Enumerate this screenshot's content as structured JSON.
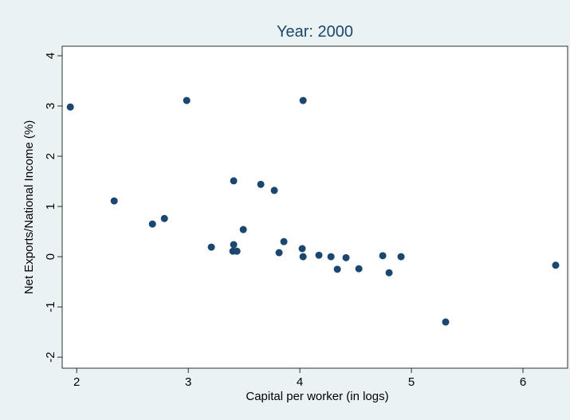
{
  "chart_data": {
    "type": "scatter",
    "title": "Year: 2000",
    "x_label": "Capital per worker (in logs)",
    "y_label": "Net Exports/National Income (%)",
    "color": "#1a476f",
    "x": [
      1.943,
      2.986,
      4.029,
      2.336,
      2.679,
      2.786,
      3.407,
      3.65,
      3.771,
      3.493,
      3.207,
      3.407,
      3.4,
      3.436,
      3.857,
      3.814,
      4.021,
      4.029,
      4.171,
      4.279,
      4.336,
      4.414,
      4.529,
      4.743,
      4.907,
      4.8,
      5.307,
      6.293
    ],
    "values": [
      2.98,
      3.11,
      3.11,
      1.11,
      0.65,
      0.76,
      1.51,
      1.44,
      1.32,
      0.54,
      0.19,
      0.24,
      0.11,
      0.11,
      0.3,
      0.08,
      0.16,
      0.0,
      0.03,
      0.0,
      -0.25,
      -0.02,
      -0.24,
      0.02,
      0.0,
      -0.32,
      -1.3,
      -0.17
    ],
    "xlim": [
      1.87,
      6.4
    ],
    "xticks": [
      2,
      3,
      4,
      5,
      6
    ],
    "ylim": [
      -2.22,
      4.19
    ],
    "yticks": [
      -2,
      -1,
      0,
      1,
      2,
      3,
      4
    ]
  }
}
